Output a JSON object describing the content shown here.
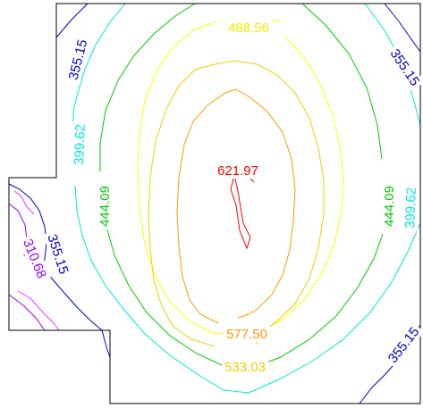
{
  "chart_data": {
    "type": "contour",
    "title": "",
    "xlabel": "",
    "ylabel": "",
    "levels": [
      {
        "value": 310.68,
        "label": "310.68",
        "color": "#9900ff"
      },
      {
        "value": 355.15,
        "label": "355.15",
        "color": "#0000cc"
      },
      {
        "value": 399.62,
        "label": "399.62",
        "color": "#00e5e5"
      },
      {
        "value": 444.09,
        "label": "444.09",
        "color": "#00cc00"
      },
      {
        "value": 488.56,
        "label": "488.56",
        "color": "#ffff00"
      },
      {
        "value": 533.03,
        "label": "533.03",
        "color": "#f2cc00"
      },
      {
        "value": 577.5,
        "label": "577.50",
        "color": "#ff9900"
      },
      {
        "value": 621.97,
        "label": "621.97",
        "color": "#ff0000"
      }
    ],
    "extra_line_color": "#ff33ff",
    "domain": "L-shaped region with rectangular notches at the left side"
  }
}
